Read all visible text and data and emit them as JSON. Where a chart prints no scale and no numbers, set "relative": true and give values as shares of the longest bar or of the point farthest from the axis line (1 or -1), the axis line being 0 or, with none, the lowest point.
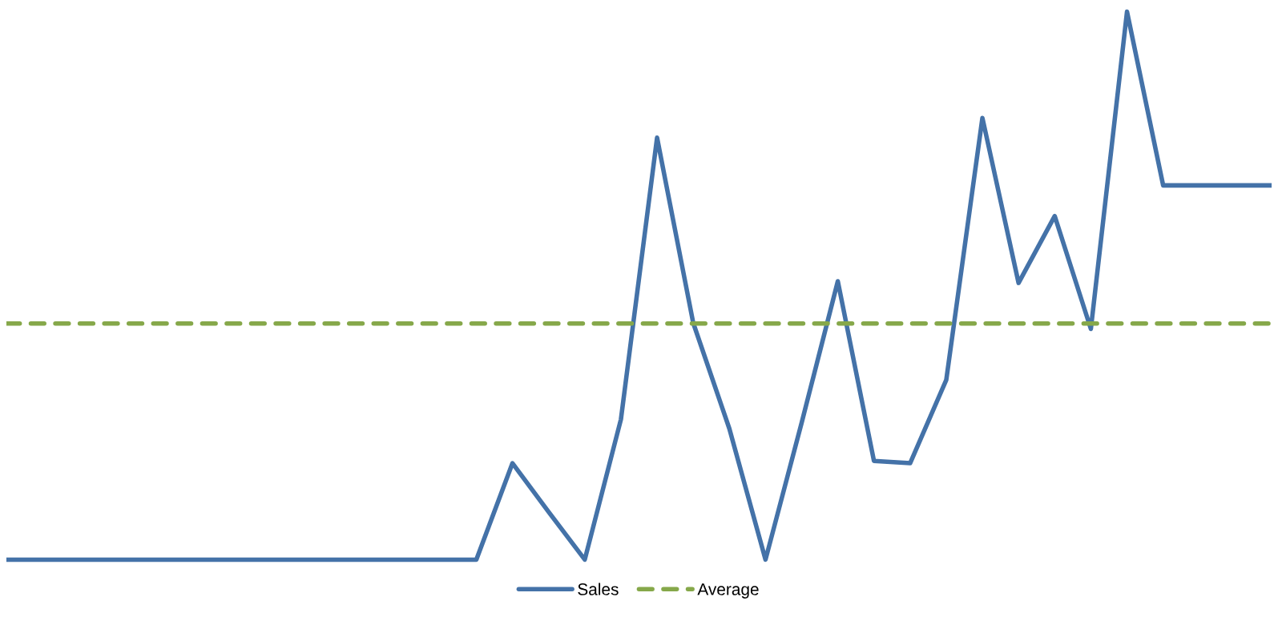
{
  "chart_data": {
    "type": "line",
    "relative": true,
    "categories": [
      null,
      null,
      null,
      null,
      null,
      null,
      null,
      null,
      null,
      null,
      null,
      null,
      null,
      null,
      null,
      null,
      null,
      null,
      null,
      null,
      null,
      null,
      null,
      null,
      null,
      null,
      null,
      null,
      null,
      null,
      null,
      null,
      null,
      null,
      null,
      null
    ],
    "series": [
      {
        "name": "Sales",
        "color": "#4472a8",
        "line_style": "solid",
        "values": [
          0,
          0,
          0,
          0,
          0,
          0,
          0,
          0,
          0,
          0,
          0,
          0,
          0,
          0,
          0.176,
          0.087,
          0,
          0.256,
          0.77,
          0.432,
          0.239,
          0,
          0.25,
          0.508,
          0.18,
          0.176,
          0.328,
          0.806,
          0.505,
          0.627,
          0.421,
          1,
          0.683,
          0.683,
          0.683,
          0.683
        ]
      },
      {
        "name": "Average",
        "color": "#86a84a",
        "line_style": "dashed",
        "values": [
          0.431,
          0.431,
          0.431,
          0.431,
          0.431,
          0.431,
          0.431,
          0.431,
          0.431,
          0.431,
          0.431,
          0.431,
          0.431,
          0.431,
          0.431,
          0.431,
          0.431,
          0.431,
          0.431,
          0.431,
          0.431,
          0.431,
          0.431,
          0.431,
          0.431,
          0.431,
          0.431,
          0.431,
          0.431,
          0.431,
          0.431,
          0.431,
          0.431,
          0.431,
          0.431,
          0.431
        ]
      }
    ],
    "grid": false,
    "legend": "bottom",
    "marker": "none"
  }
}
